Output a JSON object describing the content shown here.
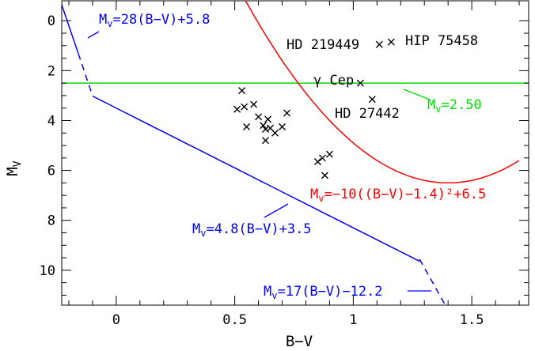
{
  "chart_data": {
    "type": "scatter",
    "xlabel": "B−V",
    "ylabel": "M_V",
    "xlim": [
      -0.23,
      1.74
    ],
    "ylim": [
      11.4,
      -0.8
    ],
    "y_inverted": true,
    "grid": false,
    "xticks": [
      {
        "value": 0,
        "label": "0"
      },
      {
        "value": 0.5,
        "label": "0.5"
      },
      {
        "value": 1,
        "label": "1"
      },
      {
        "value": 1.5,
        "label": "1.5"
      }
    ],
    "yticks": [
      {
        "value": 0,
        "label": "0"
      },
      {
        "value": 2,
        "label": "2"
      },
      {
        "value": 4,
        "label": "4"
      },
      {
        "value": 6,
        "label": "6"
      },
      {
        "value": 8,
        "label": "8"
      },
      {
        "value": 10,
        "label": "10"
      }
    ],
    "series": [
      {
        "marker": "x",
        "color": "#000000",
        "points": [
          {
            "x": 0.51,
            "y": 3.55
          },
          {
            "x": 0.53,
            "y": 2.8
          },
          {
            "x": 0.54,
            "y": 3.45
          },
          {
            "x": 0.55,
            "y": 4.25
          },
          {
            "x": 0.58,
            "y": 3.35
          },
          {
            "x": 0.6,
            "y": 3.85
          },
          {
            "x": 0.62,
            "y": 4.2
          },
          {
            "x": 0.63,
            "y": 4.35
          },
          {
            "x": 0.64,
            "y": 3.95
          },
          {
            "x": 0.63,
            "y": 4.8
          },
          {
            "x": 0.65,
            "y": 4.3
          },
          {
            "x": 0.67,
            "y": 4.5
          },
          {
            "x": 0.7,
            "y": 4.25
          },
          {
            "x": 0.72,
            "y": 3.7
          },
          {
            "x": 0.85,
            "y": 5.65
          },
          {
            "x": 0.87,
            "y": 5.5
          },
          {
            "x": 0.9,
            "y": 5.35
          },
          {
            "x": 0.88,
            "y": 6.2
          },
          {
            "x": 1.03,
            "y": 2.5
          },
          {
            "x": 1.08,
            "y": 3.15
          },
          {
            "x": 1.11,
            "y": 0.95
          },
          {
            "x": 1.16,
            "y": 0.85
          }
        ]
      }
    ],
    "lines": [
      {
        "kind": "linear",
        "slope": 28,
        "intercept": 5.8,
        "solid_range": [
          -0.24,
          -0.16
        ],
        "dashed_range": [
          -0.16,
          -0.1
        ],
        "color": "#0000ff"
      },
      {
        "kind": "linear",
        "slope": 4.8,
        "intercept": 3.5,
        "solid_range": [
          -0.1,
          1.28
        ],
        "color": "#0000ff"
      },
      {
        "kind": "linear",
        "slope": 17,
        "intercept": -12.2,
        "dashed_range": [
          1.28,
          1.4
        ],
        "color": "#0000ff"
      },
      {
        "kind": "horizontal",
        "y": 2.5,
        "range": [
          -0.23,
          1.74
        ],
        "color": "#00dd00"
      },
      {
        "kind": "quadratic",
        "a": -10,
        "center": 1.4,
        "offset": 6.5,
        "range": [
          0.54,
          1.7
        ],
        "color": "#ff0000"
      }
    ],
    "annotations": [
      {
        "text_main": "M",
        "sub": "v",
        "text_rest": "=28(B−V)+5.8",
        "color": "#0000ff"
      },
      {
        "text_main": "M",
        "sub": "v",
        "text_rest": "=4.8(B−V)+3.5",
        "color": "#0000ff"
      },
      {
        "text_main": "M",
        "sub": "v",
        "text_rest": "=17(B−V)−12.2",
        "color": "#0000ff"
      },
      {
        "text_main": "M",
        "sub": "v",
        "text_rest": "=2.50",
        "color": "#00dd00"
      },
      {
        "text_main": "M",
        "sub": "v",
        "text_rest": "=−10((B−V)−1.4)²+6.5",
        "color": "#ff0000"
      }
    ],
    "star_labels": [
      "HD 219449",
      "HIP 75458",
      "γ Cep",
      "HD 27442"
    ]
  }
}
